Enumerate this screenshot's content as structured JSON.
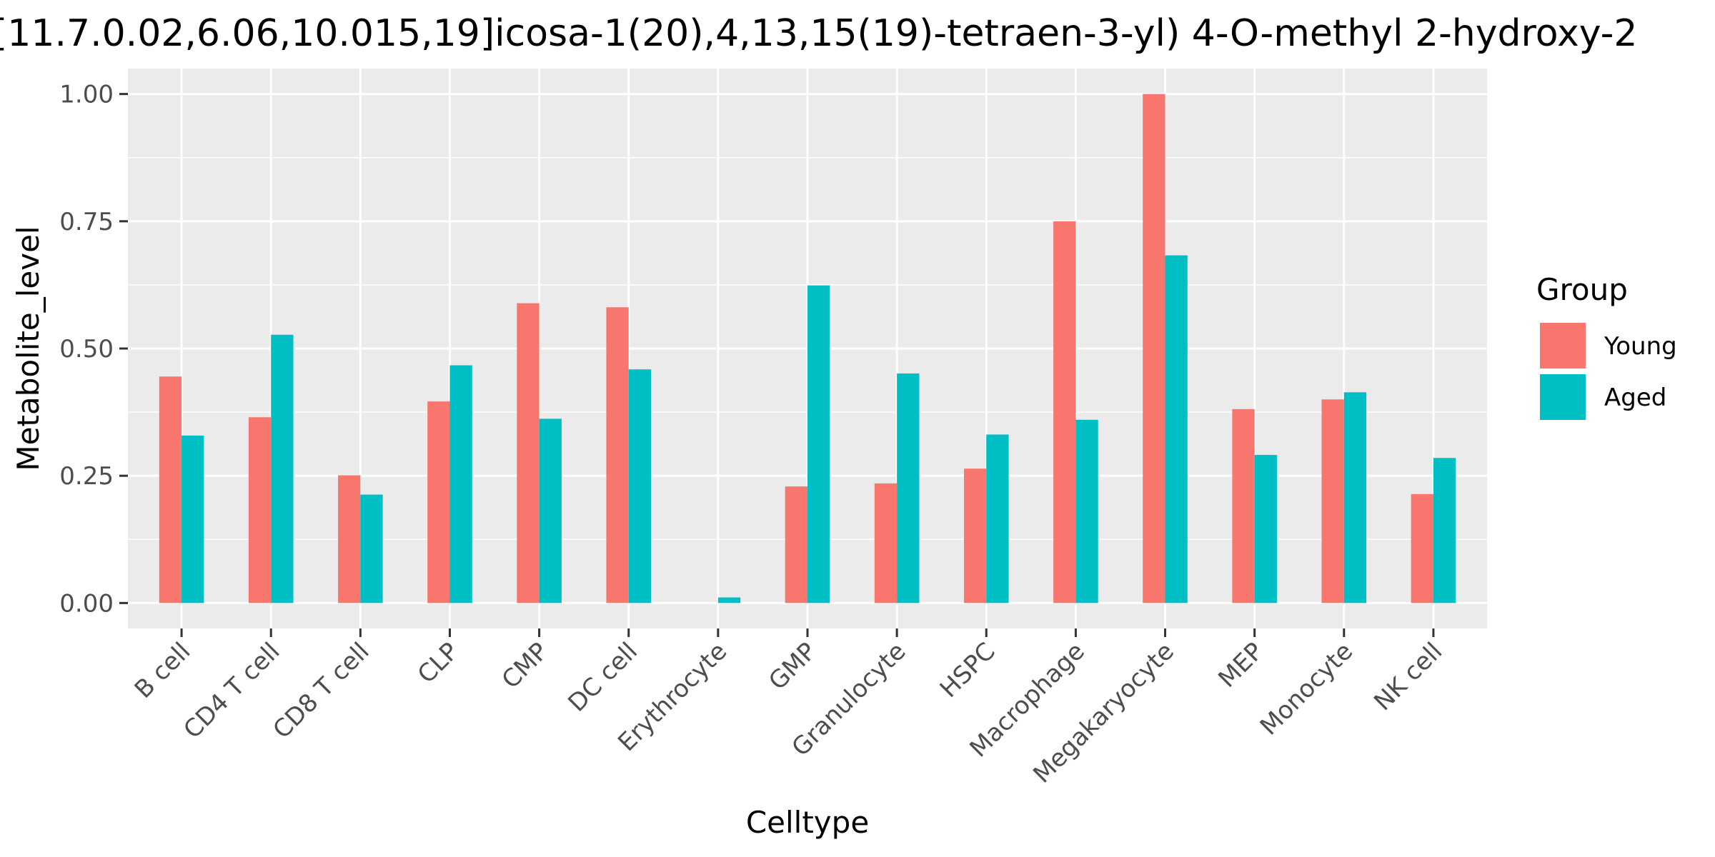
{
  "chart_data": {
    "type": "bar",
    "title": "[11.7.0.02,6.06,10.015,19]icosa-1(20),4,13,15(19)-tetraen-3-yl) 4-O-methyl 2-hydroxy-2",
    "xlabel": "Celltype",
    "ylabel": "Metabolite_level",
    "ylim": [
      -0.05,
      1.05
    ],
    "yticks": [
      0.0,
      0.25,
      0.5,
      0.75,
      1.0
    ],
    "ytick_labels": [
      "0.00",
      "0.25",
      "0.50",
      "0.75",
      "1.00"
    ],
    "grid": true,
    "legend_position": "right",
    "legend_title": "Group",
    "categories": [
      "B cell",
      "CD4 T cell",
      "CD8 T cell",
      "CLP",
      "CMP",
      "DC cell",
      "Erythrocyte",
      "GMP",
      "Granulocyte",
      "HSPC",
      "Macrophage",
      "Megakaryocyte",
      "MEP",
      "Monocyte",
      "NK cell"
    ],
    "series": [
      {
        "name": "Young",
        "color": "#F8766D",
        "values": [
          0.445,
          0.365,
          0.251,
          0.396,
          0.589,
          0.581,
          0.0,
          0.229,
          0.235,
          0.264,
          0.75,
          1.0,
          0.381,
          0.4,
          0.214
        ]
      },
      {
        "name": "Aged",
        "color": "#00BFC4",
        "values": [
          0.329,
          0.527,
          0.213,
          0.467,
          0.362,
          0.459,
          0.011,
          0.624,
          0.451,
          0.331,
          0.36,
          0.683,
          0.291,
          0.414,
          0.285
        ]
      }
    ]
  }
}
